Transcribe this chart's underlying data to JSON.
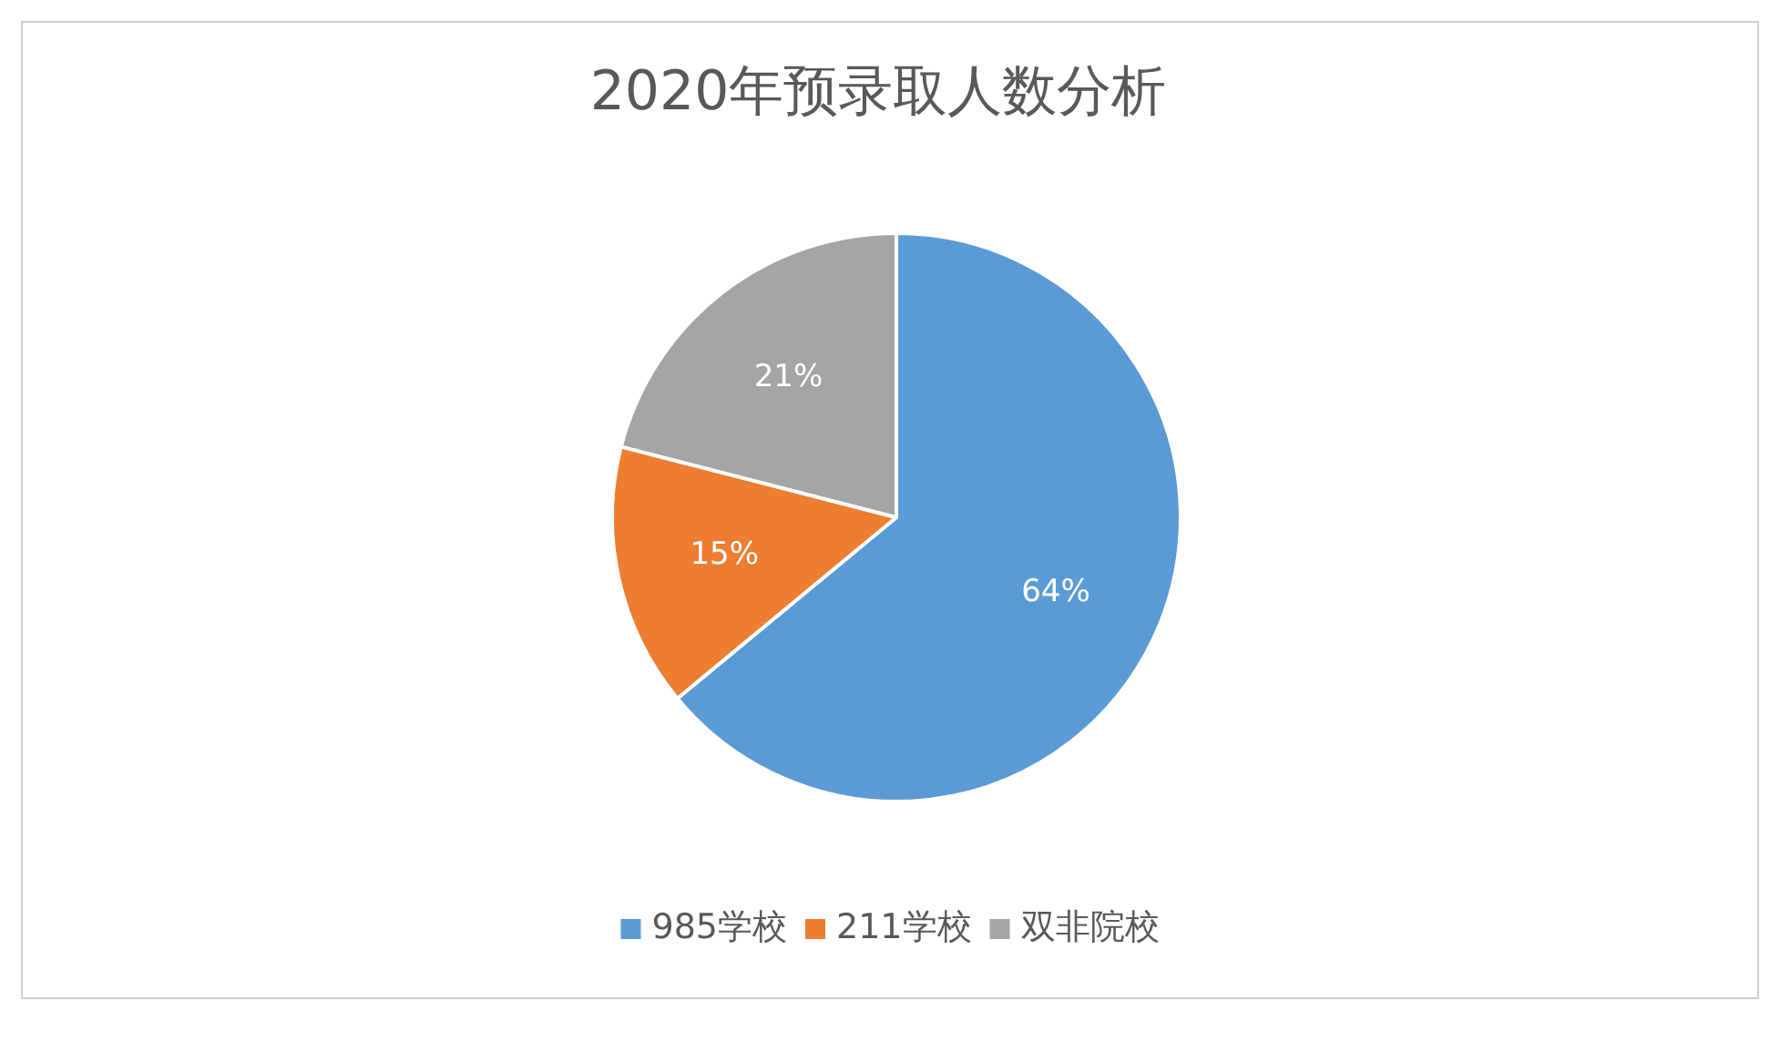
{
  "chart_data": {
    "type": "pie",
    "title": "2020年预录取人数分析",
    "categories": [
      "985学校",
      "211学校",
      "双非院校"
    ],
    "values": [
      64,
      15,
      21
    ],
    "colors": [
      "#5b9bd5",
      "#ed7d31",
      "#a5a5a5"
    ],
    "value_labels": [
      "64%",
      "15%",
      "21%"
    ],
    "legend": "bottom"
  }
}
